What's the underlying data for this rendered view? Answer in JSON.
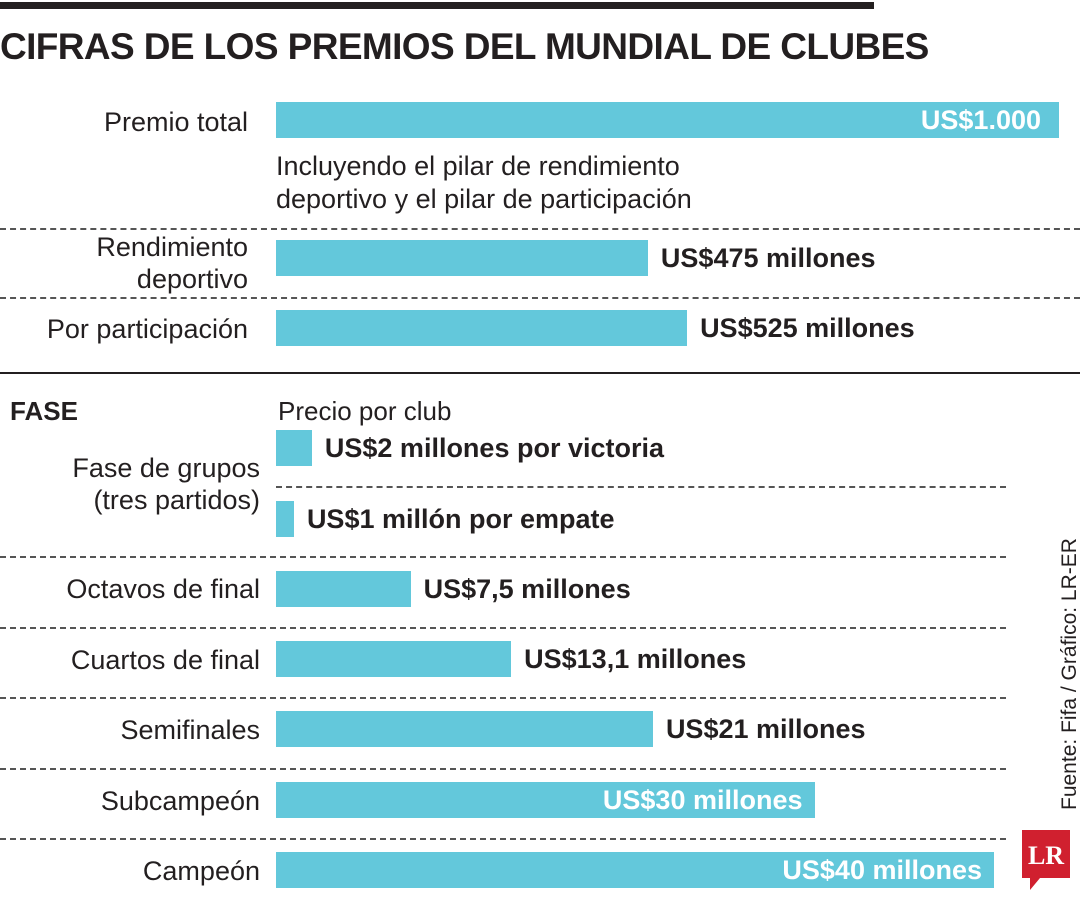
{
  "title": "CIFRAS DE LOS PREMIOS DEL MUNDIAL DE CLUBES",
  "source": "Fuente: Fifa / Gráfico: LR-ER",
  "logo_text": "LR",
  "colors": {
    "bar": "#63c8db",
    "text": "#231f20",
    "logo": "#d0202f"
  },
  "chart_data": [
    {
      "type": "bar",
      "orientation": "horizontal",
      "unit": "US$ millones",
      "xlim": [
        0,
        1000
      ],
      "categories": [
        "Premio total",
        "Rendimiento deportivo",
        "Por participación"
      ],
      "values": [
        1000,
        475,
        525
      ],
      "value_labels": [
        "US$1.000",
        "US$475 millones",
        "US$525 millones"
      ],
      "annotation": "Incluyendo el pilar de rendimiento deportivo y el pilar de participación"
    },
    {
      "type": "bar",
      "orientation": "horizontal",
      "unit": "US$ millones",
      "xlim": [
        0,
        42
      ],
      "section_title": "FASE",
      "subtitle": "Precio por club",
      "categories": [
        "Fase de grupos (tres partidos)",
        "Octavos de final",
        "Cuartos de final",
        "Semifinales",
        "Subcampeón",
        "Campeón"
      ],
      "series": [
        {
          "category": "Fase de grupos (tres partidos)",
          "value": 2,
          "label": "US$2 millones por victoria"
        },
        {
          "category": "Fase de grupos (tres partidos)",
          "value": 1,
          "label": "US$1 millón por empate"
        },
        {
          "category": "Octavos de final",
          "value": 7.5,
          "label": "US$7,5 millones"
        },
        {
          "category": "Cuartos de final",
          "value": 13.1,
          "label": "US$13,1 millones"
        },
        {
          "category": "Semifinales",
          "value": 21,
          "label": "US$21 millones"
        },
        {
          "category": "Subcampeón",
          "value": 30,
          "label": "US$30 millones"
        },
        {
          "category": "Campeón",
          "value": 40,
          "label": "US$40 millones"
        }
      ]
    }
  ]
}
